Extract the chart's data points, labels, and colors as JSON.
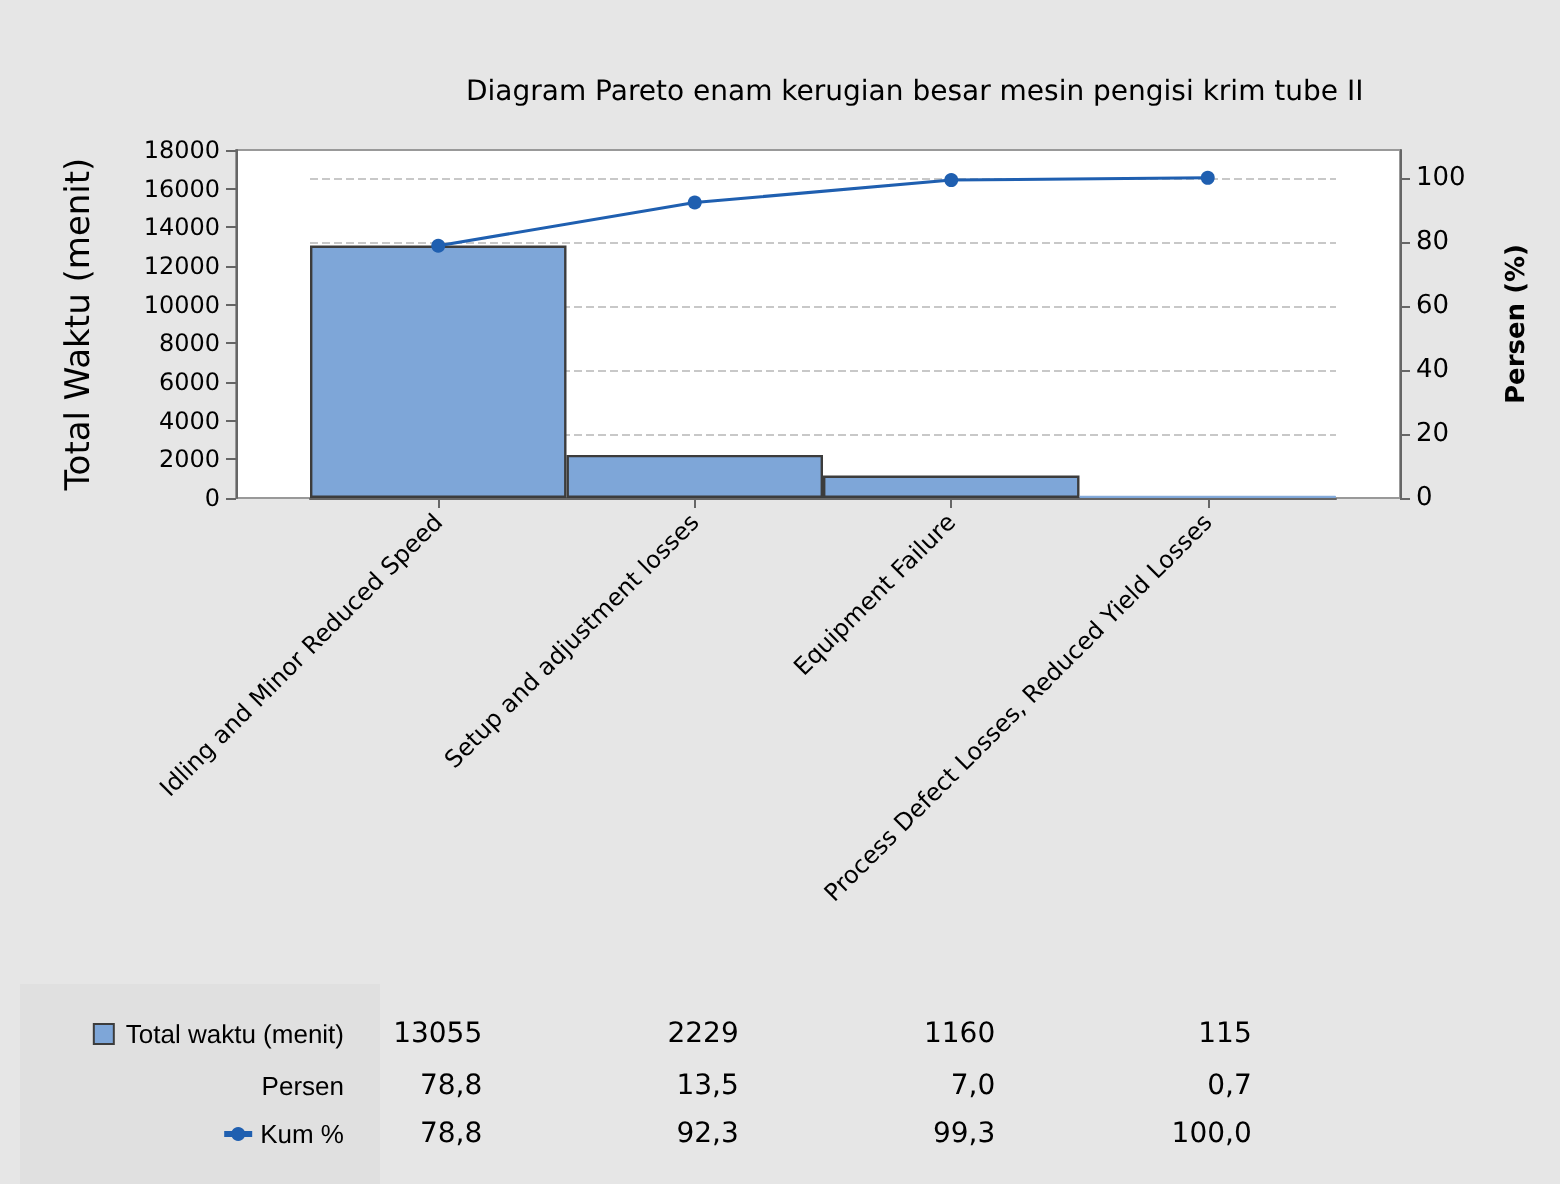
{
  "chart_data": {
    "type": "bar",
    "title": "Diagram Pareto enam kerugian besar mesin pengisi krim tube II",
    "categories": [
      "Idling and Minor Reduced Speed",
      "Setup and adjustment losses",
      "Equipment Failure",
      "Process Defect Losses, Reduced Yield Losses"
    ],
    "series": [
      {
        "name": "Total waktu (menit)",
        "color": "#7ea6d8",
        "values": [
          13055,
          2229,
          1160,
          115
        ],
        "value_labels": [
          "13055",
          "2229",
          "1160",
          "115"
        ]
      },
      {
        "name": "Kum %",
        "type": "line",
        "axis": "y2",
        "color": "#1f5fb0",
        "values": [
          78.8,
          92.3,
          99.3,
          100.0
        ],
        "value_labels": [
          "78,8",
          "92,3",
          "99,3",
          "100,0"
        ]
      }
    ],
    "ylabel": "Total Waktu (menit)",
    "y2label": "Persen (%)",
    "ylim": [
      0,
      18000
    ],
    "yticks": [
      0,
      2000,
      4000,
      6000,
      8000,
      10000,
      12000,
      14000,
      16000,
      18000
    ],
    "y2lim": [
      0,
      108.7
    ],
    "y2ticks": [
      0,
      20,
      40,
      60,
      80,
      100
    ],
    "annotations": [
      "Persen",
      "78,8",
      "13,5",
      "7,0",
      "0,7"
    ],
    "grid": "y",
    "legend": "bottom left",
    "marker": "circle",
    "line_style": "solid",
    "data_labels": true
  }
}
